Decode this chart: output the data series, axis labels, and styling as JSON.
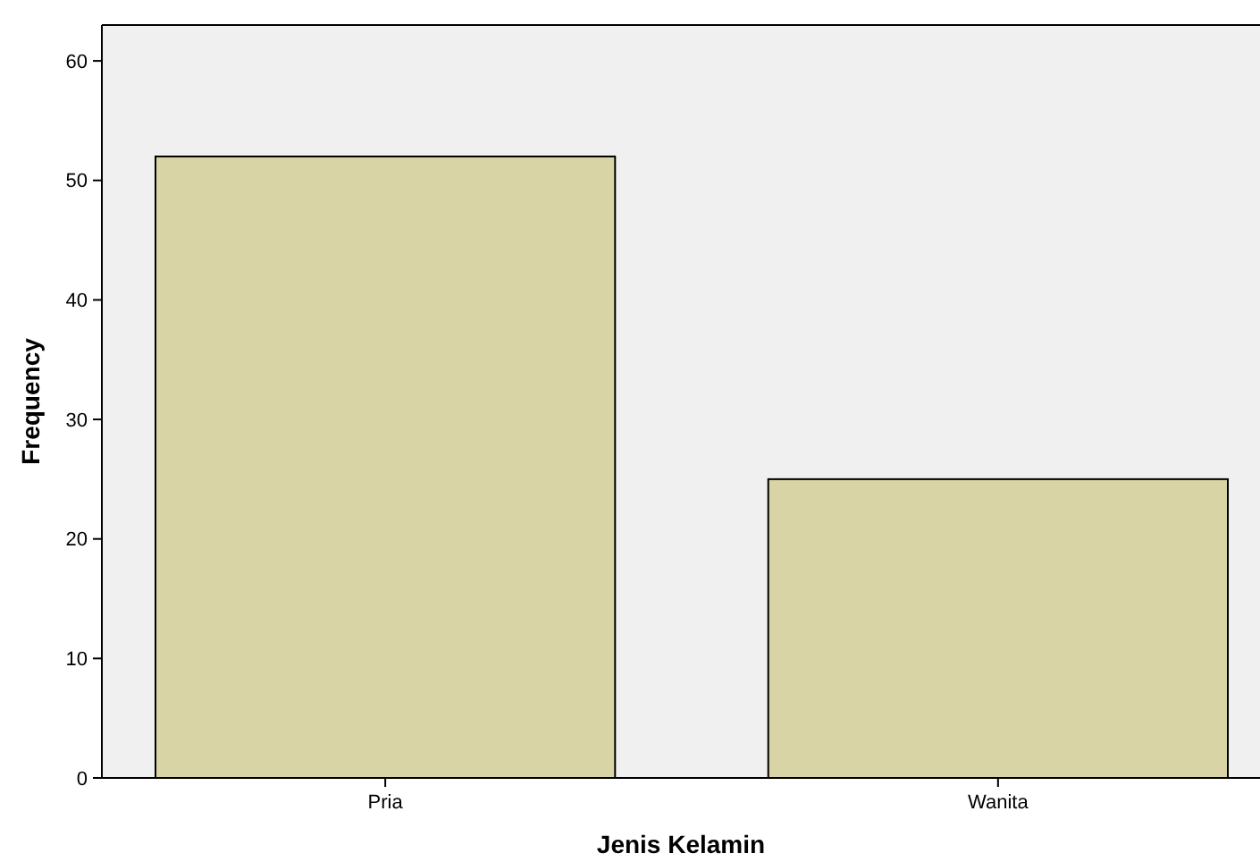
{
  "chart_data": {
    "type": "bar",
    "xlabel": "Jenis Kelamin",
    "ylabel": "Frequency",
    "categories": [
      "Pria",
      "Wanita"
    ],
    "values": [
      52,
      25
    ],
    "color": "#d9d4a6",
    "ylim": [
      0,
      63
    ],
    "yticks": [
      0,
      10,
      20,
      30,
      40,
      50,
      60
    ],
    "grid": false
  }
}
